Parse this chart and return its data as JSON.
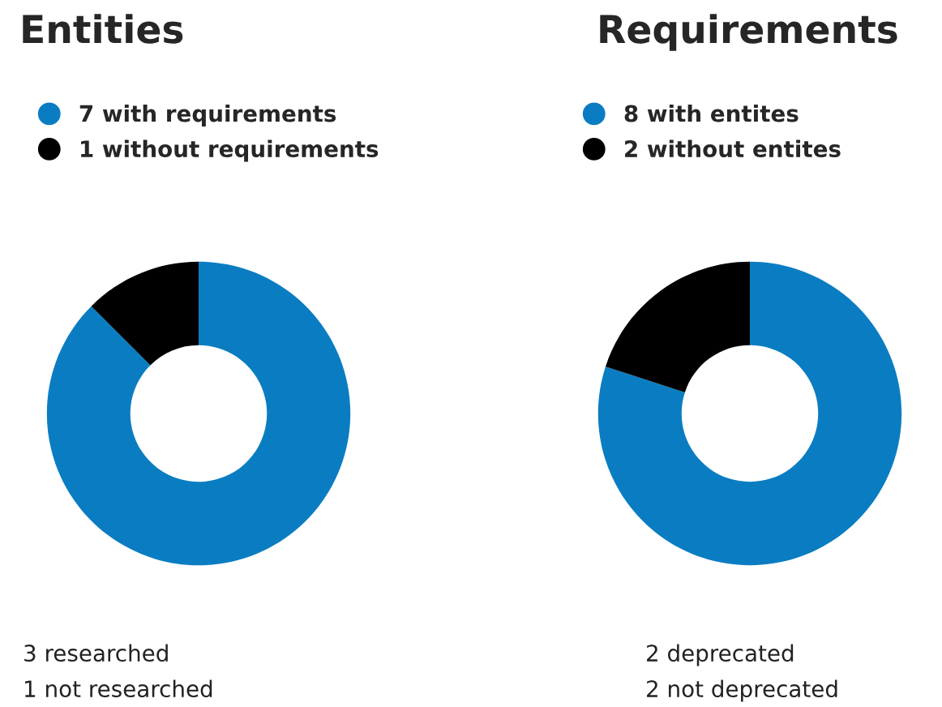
{
  "chart_data": [
    {
      "type": "donut",
      "title": "Entities",
      "categories": [
        "7 with requirements",
        "1 without requirements"
      ],
      "values": [
        7,
        1
      ],
      "colors": [
        "#0a7dc2",
        "#000000"
      ],
      "legend": "top left",
      "annotations": [
        "3 researched",
        "1 not researched"
      ]
    },
    {
      "type": "donut",
      "title": "Requirements",
      "categories": [
        "8 with entites",
        "2 without entites"
      ],
      "values": [
        8,
        2
      ],
      "colors": [
        "#0a7dc2",
        "#000000"
      ],
      "legend": "top left",
      "annotations": [
        "2 deprecated",
        "2 not deprecated"
      ]
    }
  ]
}
